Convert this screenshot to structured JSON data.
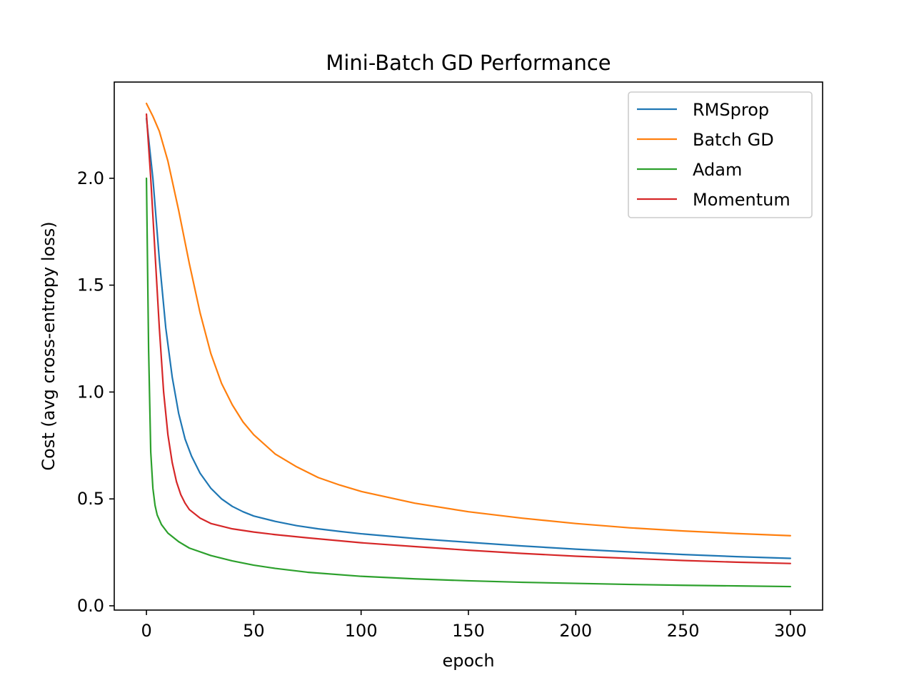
{
  "chart_data": {
    "type": "line",
    "title": "Mini-Batch GD Performance",
    "xlabel": "epoch",
    "ylabel": "Cost (avg cross-entropy loss)",
    "xlim": [
      -15,
      315
    ],
    "ylim": [
      -0.02,
      2.45
    ],
    "xticks": [
      0,
      50,
      100,
      150,
      200,
      250,
      300
    ],
    "xtick_labels": [
      "0",
      "50",
      "100",
      "150",
      "200",
      "250",
      "300"
    ],
    "yticks": [
      0.0,
      0.5,
      1.0,
      1.5,
      2.0
    ],
    "ytick_labels": [
      "0.0",
      "0.5",
      "1.0",
      "1.5",
      "2.0"
    ],
    "grid": false,
    "legend_position": "top-right",
    "series": [
      {
        "name": "RMSprop",
        "color": "#1f77b4",
        "points": [
          [
            0,
            2.28
          ],
          [
            3,
            2.0
          ],
          [
            6,
            1.62
          ],
          [
            9,
            1.3
          ],
          [
            12,
            1.07
          ],
          [
            15,
            0.9
          ],
          [
            18,
            0.78
          ],
          [
            21,
            0.7
          ],
          [
            25,
            0.62
          ],
          [
            30,
            0.55
          ],
          [
            35,
            0.5
          ],
          [
            40,
            0.465
          ],
          [
            45,
            0.44
          ],
          [
            50,
            0.42
          ],
          [
            60,
            0.395
          ],
          [
            70,
            0.375
          ],
          [
            80,
            0.36
          ],
          [
            90,
            0.348
          ],
          [
            100,
            0.337
          ],
          [
            125,
            0.315
          ],
          [
            150,
            0.297
          ],
          [
            175,
            0.28
          ],
          [
            200,
            0.265
          ],
          [
            225,
            0.252
          ],
          [
            250,
            0.24
          ],
          [
            275,
            0.23
          ],
          [
            300,
            0.222
          ]
        ]
      },
      {
        "name": "Batch GD",
        "color": "#ff7f0e",
        "points": [
          [
            0,
            2.35
          ],
          [
            3,
            2.29
          ],
          [
            6,
            2.22
          ],
          [
            10,
            2.08
          ],
          [
            15,
            1.85
          ],
          [
            20,
            1.6
          ],
          [
            25,
            1.37
          ],
          [
            30,
            1.18
          ],
          [
            35,
            1.04
          ],
          [
            40,
            0.94
          ],
          [
            45,
            0.86
          ],
          [
            50,
            0.8
          ],
          [
            60,
            0.71
          ],
          [
            70,
            0.65
          ],
          [
            80,
            0.6
          ],
          [
            90,
            0.565
          ],
          [
            100,
            0.535
          ],
          [
            125,
            0.48
          ],
          [
            150,
            0.44
          ],
          [
            175,
            0.41
          ],
          [
            200,
            0.385
          ],
          [
            225,
            0.365
          ],
          [
            250,
            0.35
          ],
          [
            275,
            0.338
          ],
          [
            300,
            0.328
          ]
        ]
      },
      {
        "name": "Adam",
        "color": "#2ca02c",
        "points": [
          [
            0,
            2.0
          ],
          [
            1,
            1.2
          ],
          [
            2,
            0.72
          ],
          [
            3,
            0.55
          ],
          [
            4,
            0.47
          ],
          [
            5,
            0.425
          ],
          [
            7,
            0.38
          ],
          [
            10,
            0.34
          ],
          [
            15,
            0.3
          ],
          [
            20,
            0.27
          ],
          [
            30,
            0.235
          ],
          [
            40,
            0.21
          ],
          [
            50,
            0.19
          ],
          [
            60,
            0.175
          ],
          [
            75,
            0.157
          ],
          [
            100,
            0.138
          ],
          [
            125,
            0.126
          ],
          [
            150,
            0.117
          ],
          [
            175,
            0.11
          ],
          [
            200,
            0.105
          ],
          [
            225,
            0.1
          ],
          [
            250,
            0.096
          ],
          [
            275,
            0.093
          ],
          [
            300,
            0.09
          ]
        ]
      },
      {
        "name": "Momentum",
        "color": "#d62728",
        "points": [
          [
            0,
            2.3
          ],
          [
            2,
            2.0
          ],
          [
            4,
            1.65
          ],
          [
            6,
            1.3
          ],
          [
            8,
            1.0
          ],
          [
            10,
            0.8
          ],
          [
            12,
            0.67
          ],
          [
            14,
            0.58
          ],
          [
            16,
            0.52
          ],
          [
            18,
            0.48
          ],
          [
            20,
            0.45
          ],
          [
            25,
            0.41
          ],
          [
            30,
            0.385
          ],
          [
            40,
            0.36
          ],
          [
            50,
            0.345
          ],
          [
            60,
            0.333
          ],
          [
            75,
            0.318
          ],
          [
            100,
            0.295
          ],
          [
            125,
            0.277
          ],
          [
            150,
            0.26
          ],
          [
            175,
            0.245
          ],
          [
            200,
            0.232
          ],
          [
            225,
            0.222
          ],
          [
            250,
            0.212
          ],
          [
            275,
            0.204
          ],
          [
            300,
            0.198
          ]
        ]
      }
    ]
  }
}
